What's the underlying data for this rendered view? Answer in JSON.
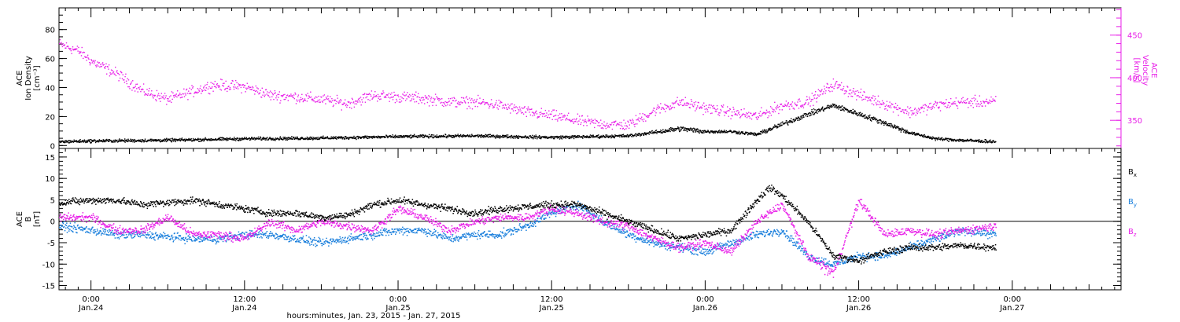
{
  "colors": {
    "black": "#000000",
    "blue": "#1a7fdc",
    "magenta": "#e81ee8"
  },
  "chart_data": [
    {
      "type": "scatter",
      "title": "",
      "xlabel": "",
      "xlim": [
        -2.5,
        80.5
      ],
      "xticks": [
        {
          "hour": 0,
          "line1": "0:00",
          "line2": "Jan.24"
        },
        {
          "hour": 12,
          "line1": "12:00",
          "line2": "Jan.24"
        },
        {
          "hour": 24,
          "line1": "0:00",
          "line2": "Jan.25"
        },
        {
          "hour": 36,
          "line1": "12:00",
          "line2": "Jan.25"
        },
        {
          "hour": 48,
          "line1": "0:00",
          "line2": "Jan.26"
        },
        {
          "hour": 60,
          "line1": "12:00",
          "line2": "Jan.26"
        },
        {
          "hour": 72,
          "line1": "0:00",
          "line2": "Jan.27"
        }
      ],
      "left_axis": {
        "label_lines": [
          "ACE",
          "Ion Density",
          "[cm⁻³]"
        ],
        "ylim": [
          -2,
          95
        ],
        "ticks": [
          0,
          20,
          40,
          60,
          80
        ],
        "color": "#000000"
      },
      "right_axis": {
        "label_lines": [
          "ACE",
          "Velocity",
          "[km/s]"
        ],
        "ylim": [
          317,
          482
        ],
        "ticks": [
          350,
          400,
          450
        ],
        "color": "#e81ee8"
      },
      "series": [
        {
          "axis": "left",
          "color": "#000000",
          "x": [
            -2.5,
            0,
            6,
            12,
            18,
            24,
            30,
            36,
            42,
            46,
            48,
            50,
            52,
            54,
            56,
            58,
            60,
            62,
            64,
            66,
            68,
            70.7
          ],
          "y": [
            3,
            3.5,
            4,
            5,
            5.5,
            6.5,
            7,
            6,
            7,
            12,
            10,
            10,
            8,
            15,
            22,
            28,
            22,
            16,
            9,
            5,
            4,
            3
          ]
        },
        {
          "axis": "right",
          "color": "#e81ee8",
          "x": [
            -2.5,
            -1,
            0,
            2,
            4,
            6,
            8,
            9.5,
            12,
            14,
            16,
            18,
            20,
            22,
            24,
            26,
            28,
            30,
            32,
            34,
            36,
            38,
            40,
            42,
            44,
            46,
            48,
            50,
            52,
            54,
            56,
            58,
            60,
            62,
            64,
            66,
            68,
            70.7
          ],
          "y": [
            440,
            432,
            420,
            405,
            385,
            375,
            385,
            392,
            390,
            380,
            378,
            375,
            370,
            380,
            378,
            376,
            372,
            372,
            368,
            360,
            356,
            350,
            346,
            345,
            362,
            372,
            365,
            360,
            355,
            368,
            372,
            393,
            380,
            370,
            360,
            368,
            372,
            372
          ]
        }
      ]
    },
    {
      "type": "scatter",
      "title": "",
      "xlabel": "hours:minutes, Jan. 23, 2015 - Jan. 27, 2015",
      "xlim": [
        -2.5,
        80.5
      ],
      "left_axis": {
        "label_lines": [
          "ACE",
          "B",
          "[nT]"
        ],
        "ylim": [
          -16,
          17
        ],
        "ticks": [
          -15,
          -10,
          -5,
          0,
          5,
          10,
          15
        ],
        "color": "#000000"
      },
      "legend_position": "right",
      "series": [
        {
          "name": "Bx",
          "sub": "x",
          "color": "#000000",
          "x": [
            -2.5,
            0,
            2,
            4,
            6,
            8,
            10,
            12,
            14,
            16,
            18,
            20,
            22,
            24,
            26,
            28,
            30,
            32,
            34,
            36,
            38,
            40,
            42,
            44,
            46,
            48,
            50,
            52,
            53,
            54,
            56,
            58,
            60,
            62,
            64,
            66,
            68,
            70.7
          ],
          "y": [
            4.5,
            5,
            5,
            4,
            4.5,
            5,
            4,
            3,
            2,
            2,
            1,
            1.5,
            4,
            5,
            4,
            3,
            2,
            3,
            3.5,
            4,
            4,
            2,
            0,
            -2,
            -4,
            -3,
            -2,
            5,
            8,
            6,
            0,
            -8,
            -9,
            -7,
            -6,
            -6,
            -5.5,
            -6
          ]
        },
        {
          "name": "By",
          "sub": "y",
          "color": "#1a7fdc",
          "x": [
            -2.5,
            0,
            2,
            4,
            6,
            8,
            10,
            12,
            14,
            16,
            18,
            20,
            22,
            24,
            26,
            28,
            30,
            32,
            34,
            36,
            38,
            40,
            42,
            44,
            46,
            48,
            50,
            52,
            54,
            56,
            58,
            60,
            62,
            64,
            66,
            68,
            70.7
          ],
          "y": [
            -1,
            -2,
            -3,
            -3,
            -3.5,
            -4,
            -4,
            -3,
            -3,
            -4,
            -5,
            -4,
            -3,
            -2,
            -2,
            -4,
            -3,
            -3,
            -1,
            2,
            4,
            0,
            -3,
            -5,
            -6,
            -7,
            -5,
            -3,
            -2,
            -8,
            -10,
            -8,
            -8,
            -6,
            -4,
            -2,
            -3
          ]
        },
        {
          "name": "Bz",
          "sub": "z",
          "color": "#e81ee8",
          "x": [
            -2.5,
            0,
            2,
            4,
            6,
            8,
            10,
            12,
            14,
            16,
            18,
            20,
            22,
            24,
            26,
            28,
            30,
            32,
            34,
            36,
            38,
            40,
            42,
            44,
            46,
            48,
            50,
            52,
            54,
            56,
            58,
            60,
            62,
            64,
            66,
            68,
            70.7
          ],
          "y": [
            1,
            1,
            -2,
            -2,
            1,
            -3,
            -3,
            -4,
            0,
            -2,
            0,
            -1,
            -2,
            3,
            1,
            -2,
            0,
            1,
            1,
            3,
            2,
            0,
            -1,
            -4,
            -6,
            -5,
            -7,
            0,
            4,
            -8,
            -12,
            5,
            -3,
            -2,
            -3,
            -2,
            -1
          ]
        }
      ]
    }
  ]
}
